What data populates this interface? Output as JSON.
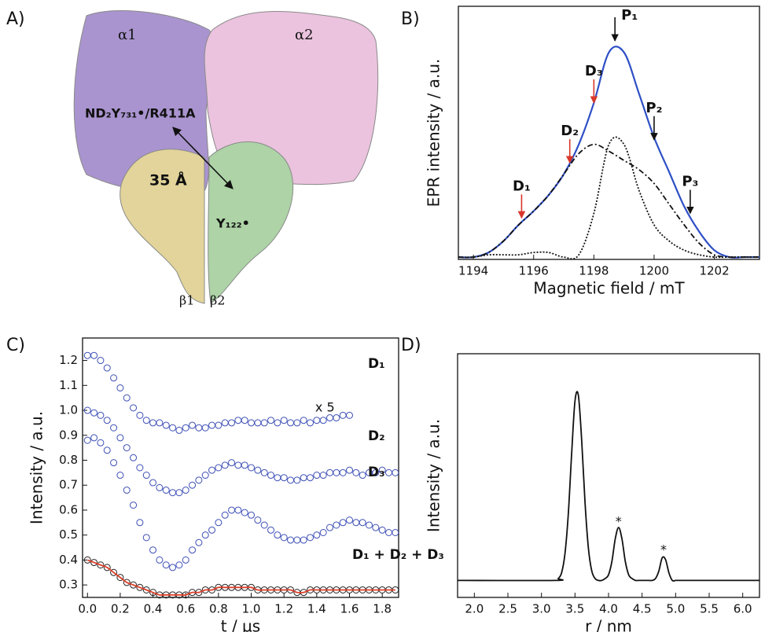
{
  "diagram": {
    "panel_label": "A)",
    "subunits": [
      "α1",
      "α2",
      "β1",
      "β2"
    ],
    "residue_1": "ND₂Y₇₃₁•/R411A",
    "residue_2": "Y₁₂₂•",
    "distance": "35 Å"
  },
  "chart_data": [
    {
      "type": "line",
      "panel_label": "B)",
      "xlabel": "Magnetic field / mT",
      "ylabel": "EPR intensity / a.u.",
      "xlim": [
        1193.5,
        1203.5
      ],
      "ylim": [
        0,
        1.1
      ],
      "xticks": [
        1194,
        1196,
        1198,
        1200,
        1202
      ],
      "x": [
        1193.5,
        1194,
        1194.5,
        1195,
        1195.5,
        1196,
        1196.5,
        1197,
        1197.5,
        1198,
        1198.5,
        1199,
        1199.5,
        1200,
        1200.5,
        1201,
        1201.5,
        1202,
        1202.5,
        1203,
        1203.5
      ],
      "series": [
        {
          "color": "#2e4fc6",
          "dash": "solid",
          "values": [
            0.01,
            0.01,
            0.03,
            0.08,
            0.15,
            0.21,
            0.28,
            0.37,
            0.5,
            0.68,
            0.9,
            0.9,
            0.72,
            0.53,
            0.38,
            0.23,
            0.12,
            0.04,
            0.01,
            0.01,
            0.01
          ]
        },
        {
          "color": "#111111",
          "dash": "dashdot",
          "values": [
            0.01,
            0.01,
            0.03,
            0.08,
            0.15,
            0.21,
            0.28,
            0.37,
            0.46,
            0.5,
            0.47,
            0.43,
            0.39,
            0.33,
            0.24,
            0.15,
            0.07,
            0.02,
            0.01,
            0.01,
            0.01
          ]
        },
        {
          "color": "#111111",
          "dash": "dotted",
          "values": [
            0.01,
            0.01,
            0.02,
            0.02,
            0.02,
            0.03,
            0.03,
            0.01,
            0.02,
            0.2,
            0.5,
            0.5,
            0.3,
            0.15,
            0.08,
            0.04,
            0.02,
            0.01,
            0.01,
            0.01,
            0.01
          ]
        }
      ],
      "annotations": [
        {
          "text": "D₁",
          "x": 1195.6,
          "y": 0.18,
          "arrow": true,
          "color": "#d8372a"
        },
        {
          "text": "D₂",
          "x": 1197.2,
          "y": 0.42,
          "arrow": true,
          "color": "#d8372a"
        },
        {
          "text": "D₃",
          "x": 1198.0,
          "y": 0.68,
          "arrow": true,
          "color": "#d8372a"
        },
        {
          "text": "P₁",
          "x": 1198.7,
          "y": 0.95,
          "arrow": true,
          "color": "#111111"
        },
        {
          "text": "P₂",
          "x": 1200.0,
          "y": 0.52,
          "arrow": true,
          "color": "#111111"
        },
        {
          "text": "P₃",
          "x": 1201.2,
          "y": 0.2,
          "arrow": true,
          "color": "#111111"
        }
      ]
    },
    {
      "type": "scatter",
      "panel_label": "C)",
      "xlabel": "t / µs",
      "ylabel": "Intensity / a.u.",
      "xlim": [
        -0.03,
        1.9
      ],
      "ylim": [
        0.25,
        1.29
      ],
      "xticks": [
        {
          "value": 0,
          "label": "0.0"
        },
        0.2,
        0.4,
        0.6,
        0.8,
        {
          "value": 1,
          "label": "1.0"
        },
        1.2,
        1.4,
        1.6,
        1.8
      ],
      "yticks": [
        0.3,
        0.4,
        0.5,
        0.6,
        0.7,
        0.8,
        0.9,
        {
          "value": 1,
          "label": "1.0"
        },
        1.1,
        1.2
      ],
      "x": [
        0,
        0.04,
        0.08,
        0.12,
        0.16,
        0.2,
        0.24,
        0.28,
        0.32,
        0.36,
        0.4,
        0.44,
        0.48,
        0.52,
        0.56,
        0.6,
        0.64,
        0.68,
        0.72,
        0.76,
        0.8,
        0.84,
        0.88,
        0.92,
        0.96,
        1,
        1.04,
        1.08,
        1.12,
        1.16,
        1.2,
        1.24,
        1.28,
        1.32,
        1.36,
        1.4,
        1.44,
        1.48,
        1.52,
        1.56,
        1.6,
        1.64,
        1.68,
        1.72,
        1.76,
        1.8,
        1.84,
        1.88
      ],
      "series": [
        {
          "name": "D₁",
          "color": "#3d4fb5",
          "style": "circle",
          "values": [
            1.22,
            1.22,
            1.2,
            1.17,
            1.13,
            1.09,
            1.05,
            1.01,
            0.98,
            0.96,
            0.95,
            0.95,
            0.94,
            0.93,
            0.92,
            0.93,
            0.94,
            0.93,
            0.93,
            0.94,
            0.94,
            0.95,
            0.95,
            0.96,
            0.96,
            0.95,
            0.95,
            0.95,
            0.96,
            0.95,
            0.96,
            0.95,
            0.95,
            0.96,
            0.95,
            0.96,
            0.96,
            0.97,
            0.97,
            0.98,
            0.98,
            null,
            null,
            null,
            null,
            null,
            null,
            null
          ]
        },
        {
          "name": "D₂",
          "color": "#3d4fb5",
          "style": "circle",
          "values": [
            1.0,
            0.99,
            0.98,
            0.96,
            0.93,
            0.89,
            0.85,
            0.81,
            0.77,
            0.74,
            0.71,
            0.69,
            0.68,
            0.67,
            0.67,
            0.68,
            0.7,
            0.72,
            0.74,
            0.76,
            0.77,
            0.78,
            0.79,
            0.78,
            0.78,
            0.77,
            0.76,
            0.75,
            0.74,
            0.73,
            0.73,
            0.72,
            0.72,
            0.73,
            0.73,
            0.74,
            0.74,
            0.75,
            0.75,
            0.75,
            0.76,
            0.75,
            0.74,
            0.75,
            0.75,
            0.76,
            0.75,
            0.75
          ]
        },
        {
          "name": "D₃",
          "color": "#3d4fb5",
          "style": "circle",
          "values": [
            0.88,
            0.89,
            0.87,
            0.84,
            0.79,
            0.74,
            0.68,
            0.62,
            0.55,
            0.49,
            0.44,
            0.4,
            0.38,
            0.37,
            0.38,
            0.4,
            0.44,
            0.47,
            0.5,
            0.52,
            0.55,
            0.58,
            0.6,
            0.6,
            0.59,
            0.58,
            0.56,
            0.54,
            0.52,
            0.5,
            0.49,
            0.48,
            0.48,
            0.48,
            0.49,
            0.5,
            0.51,
            0.53,
            0.54,
            0.55,
            0.56,
            0.55,
            0.55,
            0.54,
            0.53,
            0.52,
            0.51,
            0.51
          ]
        },
        {
          "name": "D₁ + D₂ + D₃",
          "color": "#222222",
          "style": "circle",
          "values": [
            0.4,
            0.39,
            0.38,
            0.37,
            0.35,
            0.33,
            0.31,
            0.3,
            0.29,
            0.28,
            0.27,
            0.26,
            0.26,
            0.26,
            0.26,
            0.26,
            0.27,
            0.27,
            0.28,
            0.28,
            0.29,
            0.29,
            0.29,
            0.29,
            0.29,
            0.29,
            0.28,
            0.28,
            0.28,
            0.28,
            0.28,
            0.28,
            0.27,
            0.27,
            0.28,
            0.28,
            0.28,
            0.28,
            0.28,
            0.28,
            0.28,
            0.28,
            0.28,
            0.28,
            0.28,
            0.28,
            0.28,
            0.28
          ]
        },
        {
          "color": "#e0402a",
          "style": "line",
          "values": [
            0.4,
            0.39,
            0.38,
            0.37,
            0.35,
            0.33,
            0.31,
            0.3,
            0.29,
            0.28,
            0.27,
            0.26,
            0.26,
            0.26,
            0.26,
            0.26,
            0.27,
            0.27,
            0.28,
            0.28,
            0.29,
            0.29,
            0.29,
            0.29,
            0.29,
            0.29,
            0.28,
            0.28,
            0.28,
            0.28,
            0.28,
            0.28,
            0.27,
            0.27,
            0.28,
            0.28,
            0.28,
            0.28,
            0.28,
            0.28,
            0.28,
            0.28,
            0.28,
            0.28,
            0.28,
            0.28,
            0.28,
            0.28
          ]
        }
      ],
      "annotations": [
        {
          "text": "x 5",
          "x": 1.45,
          "y": 1.01
        }
      ]
    },
    {
      "type": "line",
      "panel_label": "D)",
      "xlabel": "r / nm",
      "ylabel": "Intensity / a.u.",
      "xlim": [
        1.75,
        6.25
      ],
      "ylim": [
        -0.09,
        1.2
      ],
      "xticks": [
        {
          "value": 2,
          "label": "2.0"
        },
        2.5,
        {
          "value": 3,
          "label": "3.0"
        },
        3.5,
        {
          "value": 4,
          "label": "4.0"
        },
        4.5,
        {
          "value": 5,
          "label": "5.0"
        },
        5.5,
        {
          "value": 6,
          "label": "6.0"
        }
      ],
      "x": [
        1.75,
        3.2,
        3.25,
        3.3,
        3.35,
        3.4,
        3.45,
        3.5,
        3.55,
        3.6,
        3.65,
        3.7,
        3.75,
        3.8,
        3.85,
        3.9,
        3.95,
        4.0,
        4.05,
        4.1,
        4.15,
        4.2,
        4.25,
        4.3,
        4.35,
        4.4,
        4.45,
        4.5,
        4.55,
        4.6,
        4.65,
        4.7,
        4.75,
        4.8,
        4.85,
        4.9,
        4.95,
        5.0,
        5.05,
        5.1,
        6.25
      ],
      "series": [
        {
          "color": "#111111",
          "dash": "solid",
          "values": [
            0,
            0,
            0.01,
            0.04,
            0.14,
            0.35,
            0.67,
            0.95,
            0.98,
            0.74,
            0.41,
            0.17,
            0.05,
            0.01,
            0,
            0,
            0.01,
            0.03,
            0.1,
            0.22,
            0.28,
            0.22,
            0.1,
            0.03,
            0.01,
            0,
            0,
            0,
            0,
            0,
            0,
            0.01,
            0.05,
            0.12,
            0.11,
            0.04,
            0,
            0,
            0,
            0,
            0
          ]
        }
      ],
      "annotations": [
        {
          "text": "*",
          "x": 4.15,
          "y": 0.31
        },
        {
          "text": "*",
          "x": 4.82,
          "y": 0.16
        }
      ]
    }
  ]
}
